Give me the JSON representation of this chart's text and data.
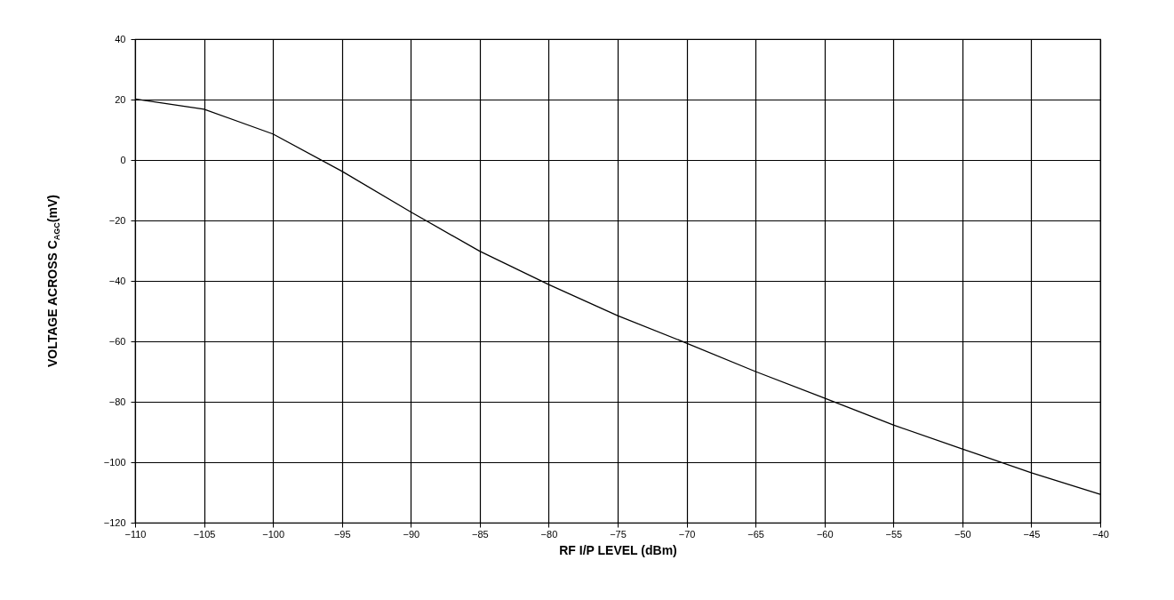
{
  "chart_data": {
    "type": "line",
    "xlabel": "RF I/P LEVEL (dBm)",
    "ylabel": "VOLTAGE ACROSS C$_{AGC}$(mV)",
    "x": [
      -110,
      -105,
      -100,
      -95,
      -90,
      -85,
      -80,
      -75,
      -70,
      -65,
      -60,
      -55,
      -50,
      -45,
      -40
    ],
    "series": [
      {
        "color": "#000000",
        "values": [
          20.2,
          16.8,
          8.6,
          -3.7,
          -17.2,
          -30.2,
          -41.2,
          -51.5,
          -60.6,
          -70,
          -78.8,
          -87.7,
          -95.6,
          -103.5,
          -110.6
        ]
      }
    ],
    "xlim": [
      -110,
      -40
    ],
    "xticks": [
      -110,
      -105,
      -100,
      -95,
      -90,
      -85,
      -80,
      -75,
      -70,
      -65,
      -60,
      -55,
      -50,
      -45,
      -40
    ],
    "ylim": [
      -120,
      40
    ],
    "yticks": [
      -120,
      -100,
      -80,
      -60,
      -40,
      -20,
      0,
      20,
      40
    ],
    "grid": true,
    "marker": "none",
    "line_style": "solid"
  }
}
